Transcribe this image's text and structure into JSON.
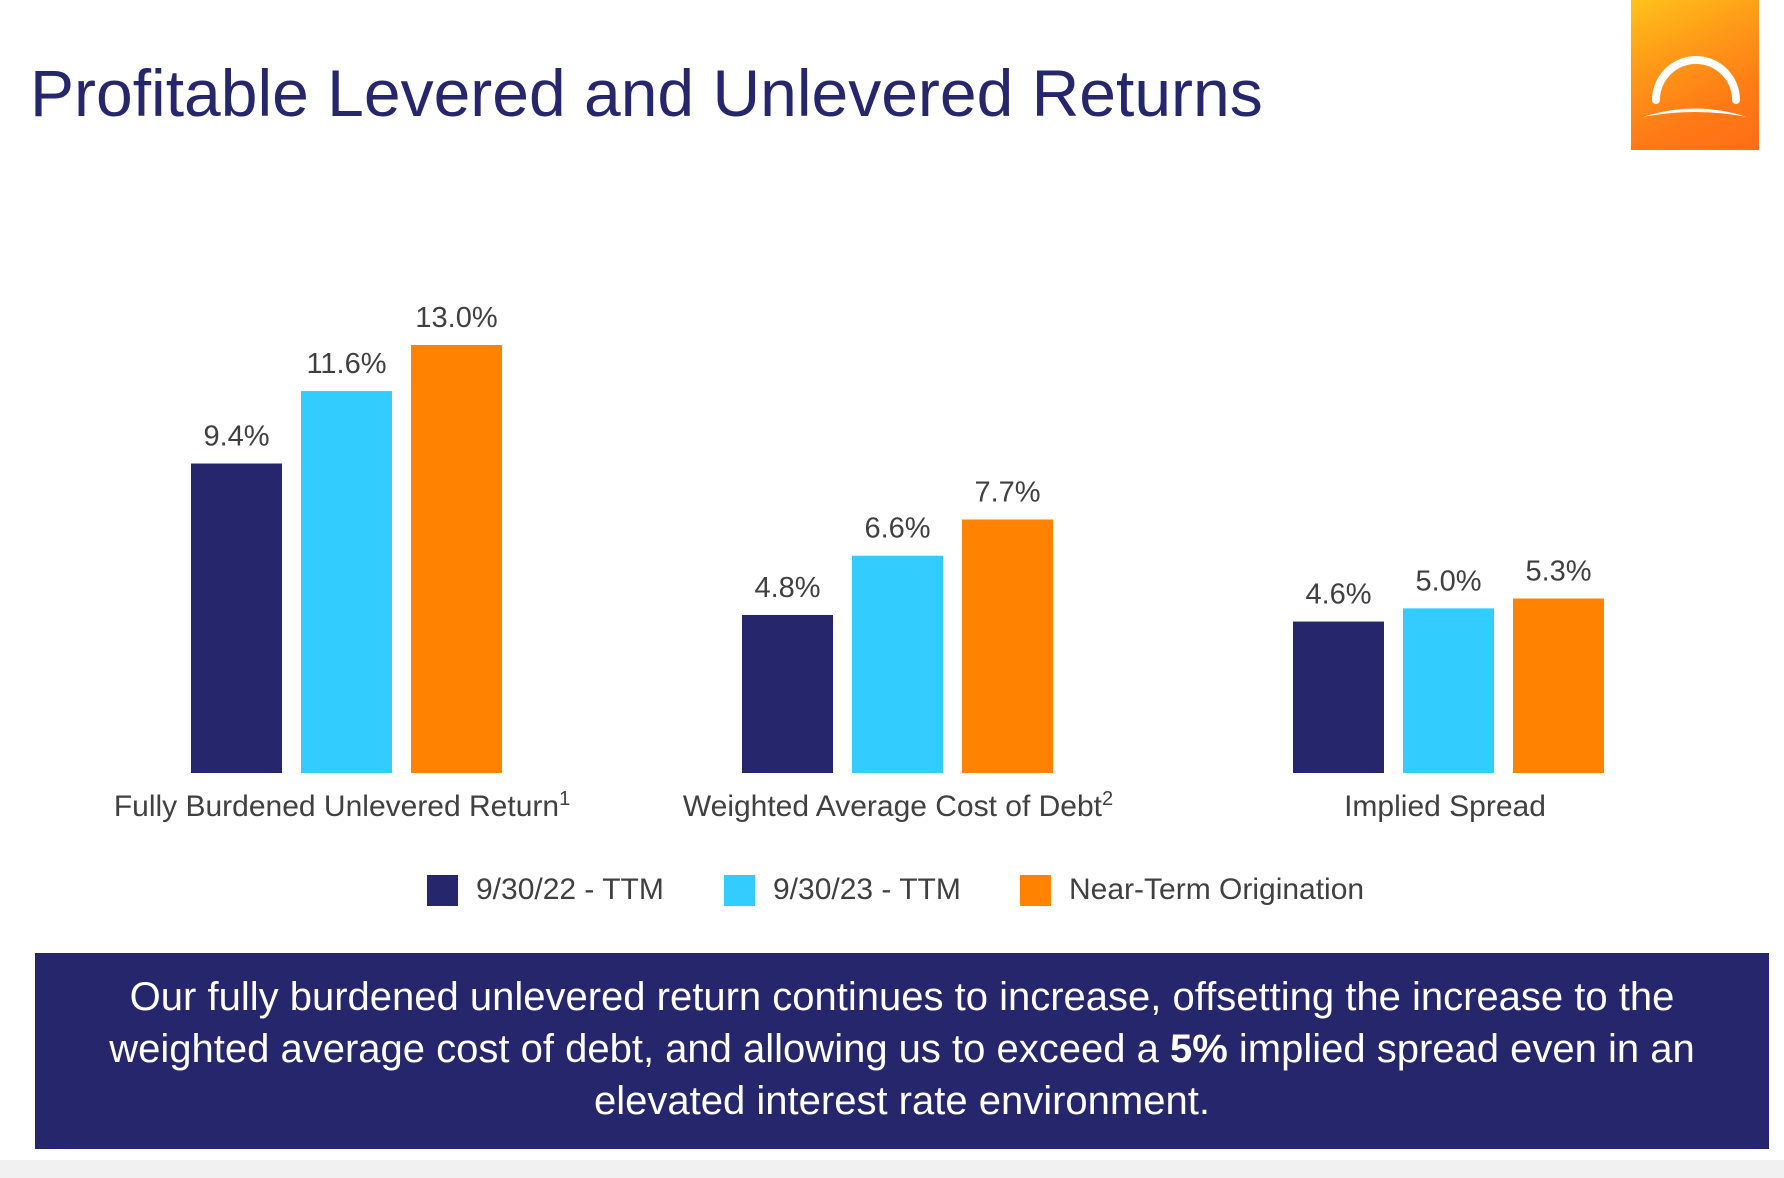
{
  "slide": {
    "title": "Profitable Levered and Unlevered Returns",
    "logo_icon": "sunrise-arch-logo-icon"
  },
  "chart_data": {
    "type": "bar",
    "categories": [
      "Fully Burdened Unlevered Return",
      "Weighted Average Cost of Debt",
      "Implied Spread"
    ],
    "category_footnotes": [
      "1",
      "2",
      ""
    ],
    "series": [
      {
        "name": "9/30/22 - TTM",
        "color": "#26266d",
        "values": [
          9.4,
          4.8,
          4.6
        ],
        "labels": [
          "9.4%",
          "4.8%",
          "4.6%"
        ]
      },
      {
        "name": "9/30/23 - TTM",
        "color": "#33ccff",
        "values": [
          11.6,
          6.6,
          5.0
        ],
        "labels": [
          "11.6%",
          "6.6%",
          "5.0%"
        ]
      },
      {
        "name": "Near-Term Origination",
        "color": "#ff8300",
        "values": [
          13.0,
          7.7,
          5.3
        ],
        "labels": [
          "13.0%",
          "7.7%",
          "5.3%"
        ]
      }
    ],
    "value_unit": "%",
    "ylim": [
      0,
      13.0
    ],
    "grid": false,
    "legend_position": "bottom"
  },
  "callout": {
    "text_before": "Our fully burdened unlevered return continues to increase, offsetting the increase to the weighted average cost of debt, and allowing us to exceed a ",
    "text_bold": "5%",
    "text_after": " implied spread even in an elevated interest rate environment."
  },
  "colors": {
    "title": "#26266d",
    "callout_bg": "#26266d",
    "logo_orange": "#ff7a16",
    "logo_yellow": "#ffc21a"
  }
}
